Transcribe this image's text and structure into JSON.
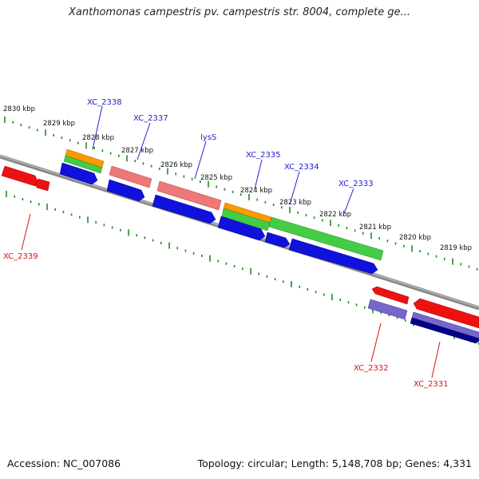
{
  "header": {
    "title": "Xanthomonas campestris pv. campestris str. 8004, complete ge..."
  },
  "footer": {
    "accession": "Accession: NC_007086",
    "summary": "Topology: circular; Length: 5,148,708 bp; Genes: 4,331"
  },
  "scale": {
    "units": "kbp",
    "ticks": [
      "2830 kbp",
      "2829 kbp",
      "2828 kbp",
      "2827 kbp",
      "2826 kbp",
      "2825 kbp",
      "2824 kbp",
      "2823 kbp",
      "2822 kbp",
      "2821 kbp",
      "2820 kbp",
      "2819 kbp"
    ]
  },
  "genes": [
    {
      "name": "XC_2338",
      "color": "#2222cc"
    },
    {
      "name": "XC_2337",
      "color": "#2222cc"
    },
    {
      "name": "lysS",
      "color": "#2222cc"
    },
    {
      "name": "XC_2335",
      "color": "#2222cc"
    },
    {
      "name": "XC_2334",
      "color": "#2222cc"
    },
    {
      "name": "XC_2333",
      "color": "#2222cc"
    },
    {
      "name": "XC_2339",
      "color": "#dd1111"
    },
    {
      "name": "XC_2332",
      "color": "#dd1111"
    },
    {
      "name": "XC_2331",
      "color": "#dd1111"
    }
  ],
  "colors": {
    "backbone": "#888888",
    "ticks": "#228822",
    "cds": "#1111dd",
    "gene": "#ee1111",
    "rrna": "#ee7777",
    "misc": "#44cc44",
    "orange": "#ff9900",
    "pseudo": "#7766cc",
    "dark": "#000088"
  }
}
